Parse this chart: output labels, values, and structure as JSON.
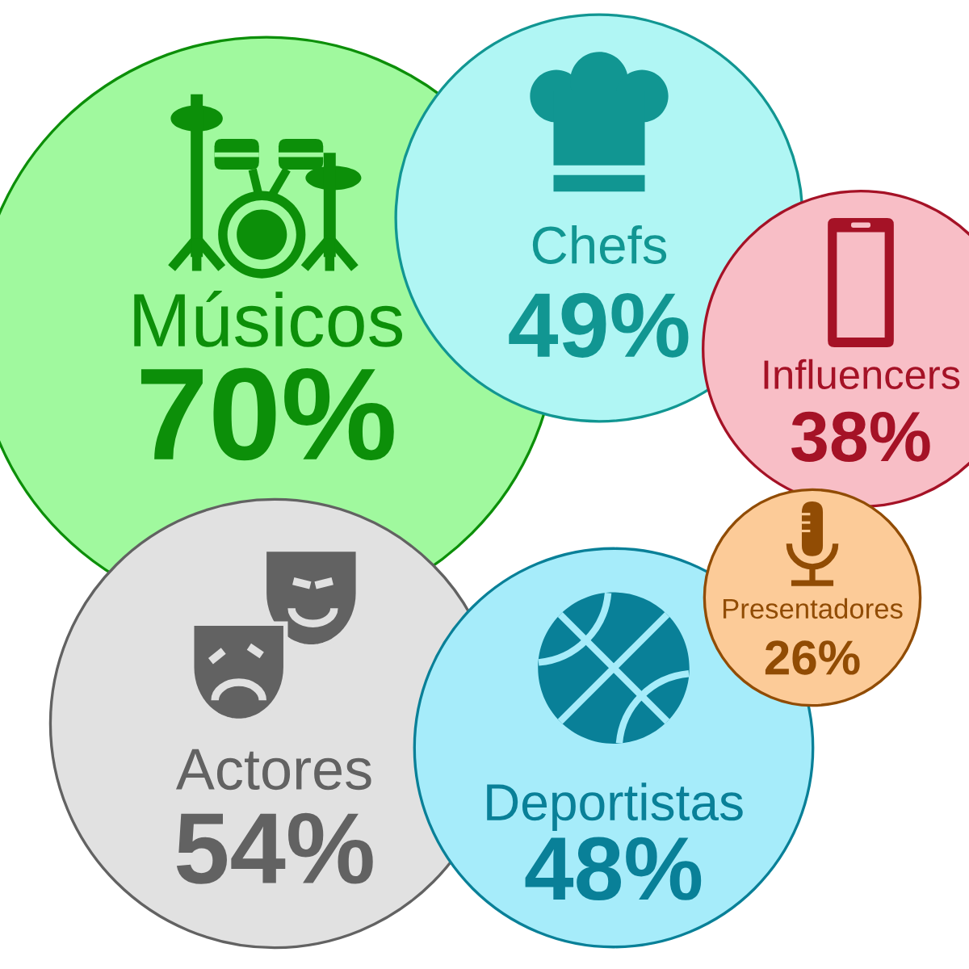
{
  "chart_data": {
    "type": "other",
    "categories": [
      "Músicos",
      "Chefs",
      "Influencers",
      "Actores",
      "Deportistas",
      "Presentadores"
    ],
    "values": [
      70,
      49,
      38,
      54,
      48,
      26
    ],
    "value_labels": [
      "70%",
      "49%",
      "38%",
      "54%",
      "48%",
      "26%"
    ],
    "colors": [
      "#a0f99e",
      "#b0f6f4",
      "#f8bec6",
      "#e1e1e1",
      "#a6ecfa",
      "#fccb98"
    ]
  }
}
